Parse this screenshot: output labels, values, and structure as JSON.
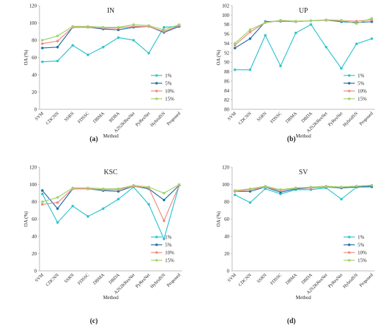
{
  "chart_data": [
    {
      "type": "line",
      "title": "IN",
      "panel_label": "(a)",
      "xlabel": "Method",
      "ylabel": "OA (%)",
      "ylim": [
        0,
        120
      ],
      "yticks": [
        0,
        20,
        40,
        60,
        80,
        100,
        120
      ],
      "grid": false,
      "legend_position": "lower-right",
      "categories": [
        "SVM",
        "CDCNN",
        "SSRN",
        "FDSSC",
        "DBMA",
        "BDBA",
        "A2S2KResNet",
        "PyResNet",
        "HybridSN",
        "Proposed"
      ],
      "series": [
        {
          "name": "1%",
          "color": "#2ec4cf",
          "values": [
            55,
            56,
            74,
            63,
            72,
            83,
            80,
            65,
            95,
            96
          ]
        },
        {
          "name": "5%",
          "color": "#1f6fa8",
          "values": [
            71,
            72,
            95,
            95,
            93,
            92,
            95,
            96,
            89,
            96
          ]
        },
        {
          "name": "10%",
          "color": "#f08a80",
          "values": [
            76,
            79,
            95,
            95,
            94,
            94,
            96,
            96,
            90,
            97
          ]
        },
        {
          "name": "15%",
          "color": "#9ed46a",
          "values": [
            80,
            85,
            96,
            96,
            95,
            95,
            98,
            97,
            92,
            98
          ]
        }
      ]
    },
    {
      "type": "line",
      "title": "UP",
      "panel_label": "(b)",
      "xlabel": "Method",
      "ylabel": "OA (%)",
      "ylim": [
        80,
        102
      ],
      "yticks": [
        80,
        82,
        84,
        86,
        88,
        90,
        92,
        94,
        96,
        98,
        100,
        102
      ],
      "grid": false,
      "legend_position": "lower-right",
      "categories": [
        "SVM",
        "CDCNN",
        "SSRN",
        "FDSSC",
        "DBMA",
        "DBDA",
        "A2S2KResNet",
        "PyResNet",
        "HybridSN",
        "Proposed"
      ],
      "series": [
        {
          "name": "1%",
          "color": "#2ec4cf",
          "values": [
            88.4,
            88.4,
            95.7,
            89.2,
            96.2,
            98.0,
            93.2,
            88.7,
            93.9,
            95.0
          ]
        },
        {
          "name": "5%",
          "color": "#1f6fa8",
          "values": [
            93.0,
            95.0,
            98.6,
            98.7,
            98.6,
            98.8,
            98.9,
            98.6,
            98.4,
            98.6
          ]
        },
        {
          "name": "10%",
          "color": "#f08a80",
          "values": [
            93.6,
            96.4,
            98.4,
            98.8,
            98.6,
            98.8,
            98.9,
            98.8,
            98.7,
            99.0
          ]
        },
        {
          "name": "15%",
          "color": "#9ed46a",
          "values": [
            94.0,
            96.9,
            98.4,
            98.9,
            98.7,
            98.8,
            99.0,
            98.9,
            98.2,
            99.3
          ]
        }
      ]
    },
    {
      "type": "line",
      "title": "KSC",
      "panel_label": "(c)",
      "xlabel": "Method",
      "ylabel": "OA (%)",
      "ylim": [
        0,
        120
      ],
      "yticks": [
        0,
        20,
        40,
        60,
        80,
        100,
        120
      ],
      "grid": false,
      "legend_position": "lower-right",
      "categories": [
        "SVM",
        "CDCNN",
        "SSRN",
        "FDSSC",
        "DBMA",
        "DBDA",
        "A2S2KResNet",
        "PyResNet",
        "HybridSN",
        "Proposed"
      ],
      "series": [
        {
          "name": "1%",
          "color": "#2ec4cf",
          "values": [
            89,
            56,
            75,
            63,
            72,
            83,
            97,
            77,
            37,
            99
          ]
        },
        {
          "name": "5%",
          "color": "#1f6fa8",
          "values": [
            93,
            72,
            95,
            95,
            93,
            92,
            98,
            95,
            82,
            99
          ]
        },
        {
          "name": "10%",
          "color": "#f08a80",
          "values": [
            77,
            79,
            95,
            95,
            94,
            94,
            98,
            96,
            58,
            99
          ]
        },
        {
          "name": "15%",
          "color": "#9ed46a",
          "values": [
            80,
            85,
            96,
            96,
            95,
            95,
            99,
            97,
            90,
            100
          ]
        }
      ]
    },
    {
      "type": "line",
      "title": "SV",
      "panel_label": "(d)",
      "xlabel": "Method",
      "ylabel": "OA (%)",
      "ylim": [
        0,
        120
      ],
      "yticks": [
        0,
        20,
        40,
        60,
        80,
        100,
        120
      ],
      "grid": false,
      "legend_position": "lower-right",
      "categories": [
        "SVM",
        "CDCNN",
        "SSRN",
        "FDSSC",
        "DBMA",
        "DBDA",
        "A2S2KResNet",
        "PyResNet",
        "HybridSN",
        "Proposed"
      ],
      "series": [
        {
          "name": "1%",
          "color": "#2ec4cf",
          "values": [
            88,
            79,
            95,
            89,
            94,
            94,
            96,
            83,
            97,
            97
          ]
        },
        {
          "name": "5%",
          "color": "#1f6fa8",
          "values": [
            92,
            92,
            97,
            91,
            95,
            96,
            97,
            96,
            97,
            98
          ]
        },
        {
          "name": "10%",
          "color": "#f08a80",
          "values": [
            92,
            94,
            97,
            93,
            96,
            96,
            97,
            97,
            98,
            99
          ]
        },
        {
          "name": "15%",
          "color": "#9ed46a",
          "values": [
            93,
            95,
            98,
            94,
            96,
            97,
            98,
            97,
            98,
            99
          ]
        }
      ]
    }
  ]
}
